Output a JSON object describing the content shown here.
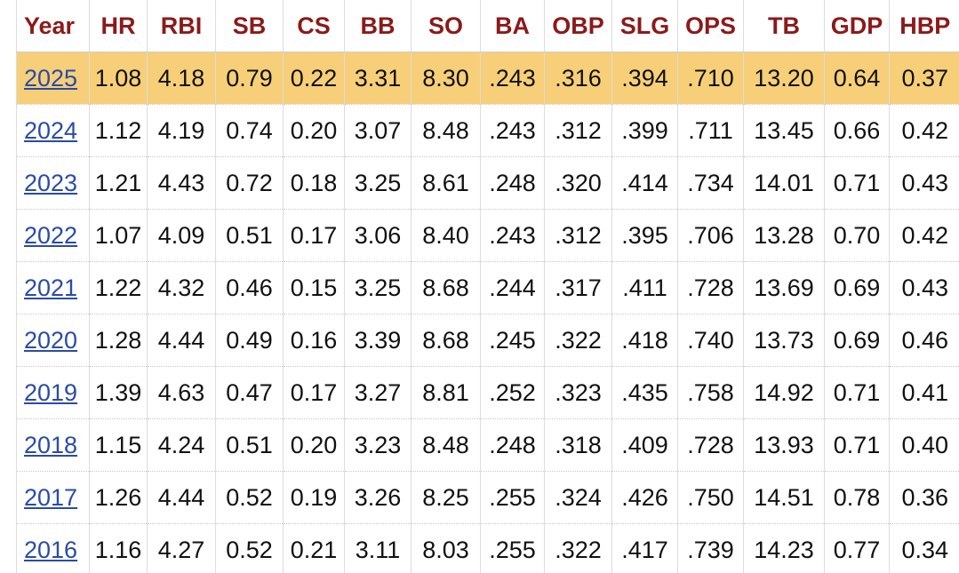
{
  "table": {
    "header": [
      "Year",
      "HR",
      "RBI",
      "SB",
      "CS",
      "BB",
      "SO",
      "BA",
      "OBP",
      "SLG",
      "OPS",
      "TB",
      "GDP",
      "HBP"
    ],
    "rows": [
      [
        "2025",
        "1.08",
        "4.18",
        "0.79",
        "0.22",
        "3.31",
        "8.30",
        ".243",
        ".316",
        ".394",
        ".710",
        "13.20",
        "0.64",
        "0.37"
      ],
      [
        "2024",
        "1.12",
        "4.19",
        "0.74",
        "0.20",
        "3.07",
        "8.48",
        ".243",
        ".312",
        ".399",
        ".711",
        "13.45",
        "0.66",
        "0.42"
      ],
      [
        "2023",
        "1.21",
        "4.43",
        "0.72",
        "0.18",
        "3.25",
        "8.61",
        ".248",
        ".320",
        ".414",
        ".734",
        "14.01",
        "0.71",
        "0.43"
      ],
      [
        "2022",
        "1.07",
        "4.09",
        "0.51",
        "0.17",
        "3.06",
        "8.40",
        ".243",
        ".312",
        ".395",
        ".706",
        "13.28",
        "0.70",
        "0.42"
      ],
      [
        "2021",
        "1.22",
        "4.32",
        "0.46",
        "0.15",
        "3.25",
        "8.68",
        ".244",
        ".317",
        ".411",
        ".728",
        "13.69",
        "0.69",
        "0.43"
      ],
      [
        "2020",
        "1.28",
        "4.44",
        "0.49",
        "0.16",
        "3.39",
        "8.68",
        ".245",
        ".322",
        ".418",
        ".740",
        "13.73",
        "0.69",
        "0.46"
      ],
      [
        "2019",
        "1.39",
        "4.63",
        "0.47",
        "0.17",
        "3.27",
        "8.81",
        ".252",
        ".323",
        ".435",
        ".758",
        "14.92",
        "0.71",
        "0.41"
      ],
      [
        "2018",
        "1.15",
        "4.24",
        "0.51",
        "0.20",
        "3.23",
        "8.48",
        ".248",
        ".318",
        ".409",
        ".728",
        "13.93",
        "0.71",
        "0.40"
      ],
      [
        "2017",
        "1.26",
        "4.44",
        "0.52",
        "0.19",
        "3.26",
        "8.25",
        ".255",
        ".324",
        ".426",
        ".750",
        "14.51",
        "0.78",
        "0.36"
      ],
      [
        "2016",
        "1.16",
        "4.27",
        "0.52",
        "0.21",
        "3.11",
        "8.03",
        ".255",
        ".322",
        ".417",
        ".739",
        "14.23",
        "0.77",
        "0.34"
      ]
    ]
  }
}
